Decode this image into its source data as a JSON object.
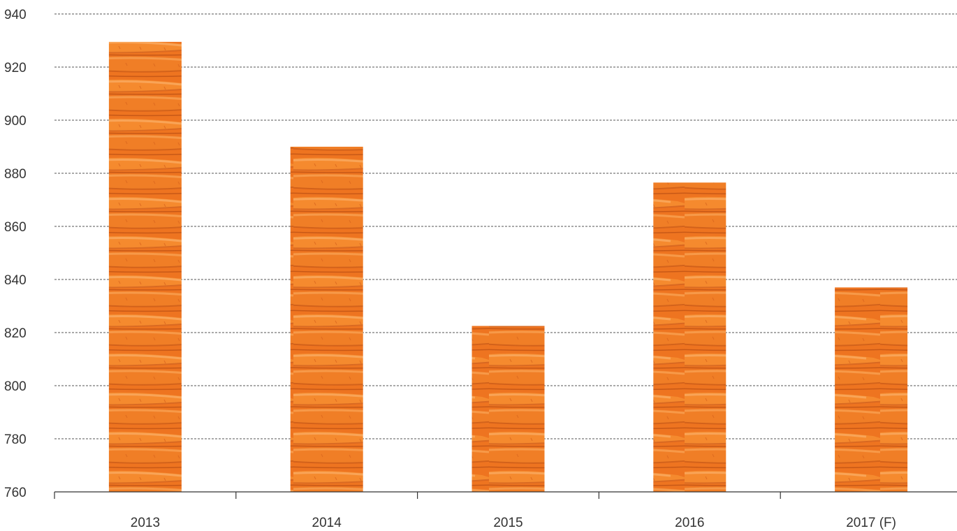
{
  "chart_data": {
    "type": "bar",
    "title": "",
    "xlabel": "",
    "ylabel": "",
    "categories": [
      "2013",
      "2014",
      "2015",
      "2016",
      "2017 (F)"
    ],
    "values": [
      929.5,
      890,
      822.5,
      876.5,
      837
    ],
    "ylim": [
      760,
      940
    ],
    "yticks": [
      760,
      780,
      800,
      820,
      840,
      860,
      880,
      900,
      920,
      940
    ],
    "grid": true,
    "legend": "none",
    "bar_fill": "carrot-photo-texture",
    "colors": {
      "bar_base": "#F07A22",
      "bar_highlight": "#F59A45",
      "bar_shadow": "#C95A12",
      "grid": "#555555",
      "text": "#333333"
    }
  }
}
